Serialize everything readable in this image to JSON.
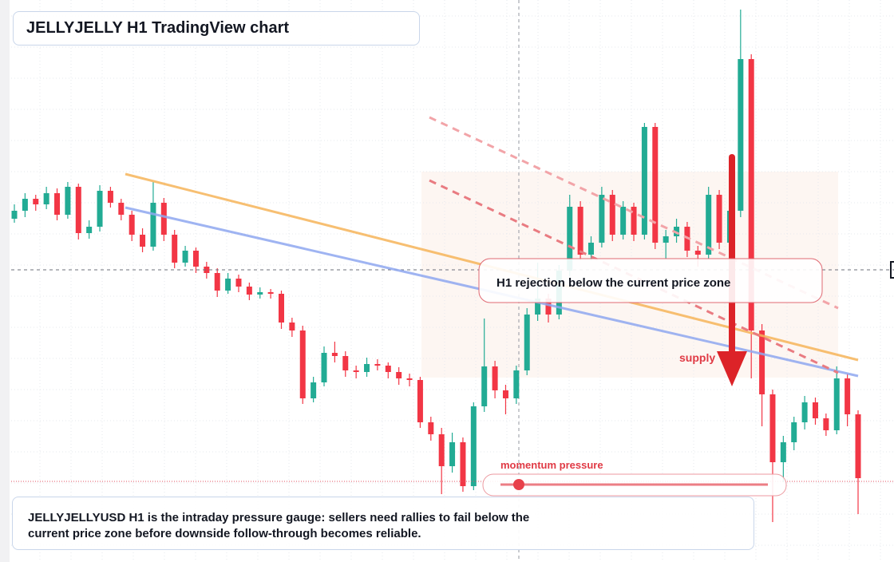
{
  "chart_data": {
    "type": "candlestick",
    "title": "JELLYJELLY H1 TradingView chart",
    "ohlc": [
      [
        430,
        448,
        425,
        440
      ],
      [
        440,
        462,
        432,
        455
      ],
      [
        455,
        460,
        440,
        448
      ],
      [
        448,
        470,
        442,
        462
      ],
      [
        462,
        468,
        428,
        435
      ],
      [
        435,
        476,
        430,
        470
      ],
      [
        470,
        474,
        404,
        412
      ],
      [
        412,
        428,
        405,
        420
      ],
      [
        420,
        472,
        414,
        465
      ],
      [
        465,
        470,
        444,
        450
      ],
      [
        450,
        455,
        428,
        435
      ],
      [
        435,
        440,
        402,
        410
      ],
      [
        410,
        418,
        388,
        395
      ],
      [
        395,
        476,
        390,
        450
      ],
      [
        450,
        456,
        402,
        410
      ],
      [
        410,
        416,
        368,
        375
      ],
      [
        375,
        396,
        370,
        390
      ],
      [
        390,
        394,
        362,
        370
      ],
      [
        370,
        376,
        355,
        362
      ],
      [
        362,
        368,
        332,
        340
      ],
      [
        340,
        362,
        336,
        355
      ],
      [
        355,
        360,
        338,
        345
      ],
      [
        345,
        350,
        328,
        335
      ],
      [
        335,
        344,
        330,
        338
      ],
      [
        338,
        342,
        330,
        336
      ],
      [
        336,
        340,
        292,
        300
      ],
      [
        300,
        306,
        282,
        290
      ],
      [
        290,
        296,
        198,
        205
      ],
      [
        205,
        232,
        200,
        225
      ],
      [
        225,
        270,
        220,
        262
      ],
      [
        262,
        276,
        250,
        258
      ],
      [
        258,
        264,
        232,
        240
      ],
      [
        240,
        246,
        230,
        238
      ],
      [
        238,
        256,
        232,
        248
      ],
      [
        248,
        254,
        240,
        246
      ],
      [
        246,
        250,
        230,
        238
      ],
      [
        238,
        244,
        222,
        230
      ],
      [
        230,
        236,
        220,
        228
      ],
      [
        228,
        232,
        168,
        175
      ],
      [
        175,
        182,
        152,
        160
      ],
      [
        160,
        168,
        85,
        120
      ],
      [
        120,
        162,
        112,
        150
      ],
      [
        150,
        156,
        88,
        95
      ],
      [
        95,
        200,
        90,
        195
      ],
      [
        195,
        305,
        188,
        245
      ],
      [
        245,
        252,
        205,
        215
      ],
      [
        215,
        222,
        185,
        205
      ],
      [
        205,
        246,
        198,
        240
      ],
      [
        240,
        318,
        234,
        310
      ],
      [
        310,
        375,
        302,
        330
      ],
      [
        330,
        336,
        300,
        310
      ],
      [
        310,
        372,
        304,
        365
      ],
      [
        365,
        460,
        358,
        445
      ],
      [
        445,
        452,
        378,
        385
      ],
      [
        385,
        408,
        378,
        400
      ],
      [
        400,
        470,
        394,
        460
      ],
      [
        460,
        466,
        402,
        410
      ],
      [
        410,
        452,
        404,
        445
      ],
      [
        445,
        450,
        402,
        410
      ],
      [
        410,
        550,
        404,
        545
      ],
      [
        545,
        550,
        392,
        400
      ],
      [
        400,
        416,
        380,
        408
      ],
      [
        408,
        430,
        400,
        420
      ],
      [
        420,
        426,
        382,
        390
      ],
      [
        390,
        396,
        370,
        385
      ],
      [
        385,
        470,
        380,
        460
      ],
      [
        460,
        466,
        392,
        400
      ],
      [
        400,
        510,
        394,
        440
      ],
      [
        440,
        692,
        432,
        630
      ],
      [
        630,
        636,
        230,
        290
      ],
      [
        290,
        298,
        170,
        210
      ],
      [
        210,
        216,
        50,
        125
      ],
      [
        125,
        158,
        100,
        150
      ],
      [
        150,
        182,
        140,
        175
      ],
      [
        175,
        208,
        166,
        200
      ],
      [
        200,
        206,
        172,
        180
      ],
      [
        180,
        186,
        158,
        165
      ],
      [
        165,
        245,
        160,
        230
      ],
      [
        230,
        236,
        170,
        185
      ],
      [
        185,
        190,
        60,
        105
      ]
    ],
    "up_color": "#22ab94",
    "down_color": "#f23645",
    "ylim": [
      0,
      704
    ],
    "grid": true,
    "zone_note": "H1 rejection below the current price zone",
    "supply_label": "supply",
    "gauge_label": "momentum pressure",
    "caption": "JELLYJELLYUSD H1 is the intraday pressure gauge: sellers need rallies to fail below the current price zone before downside follow-through becomes reliable."
  }
}
